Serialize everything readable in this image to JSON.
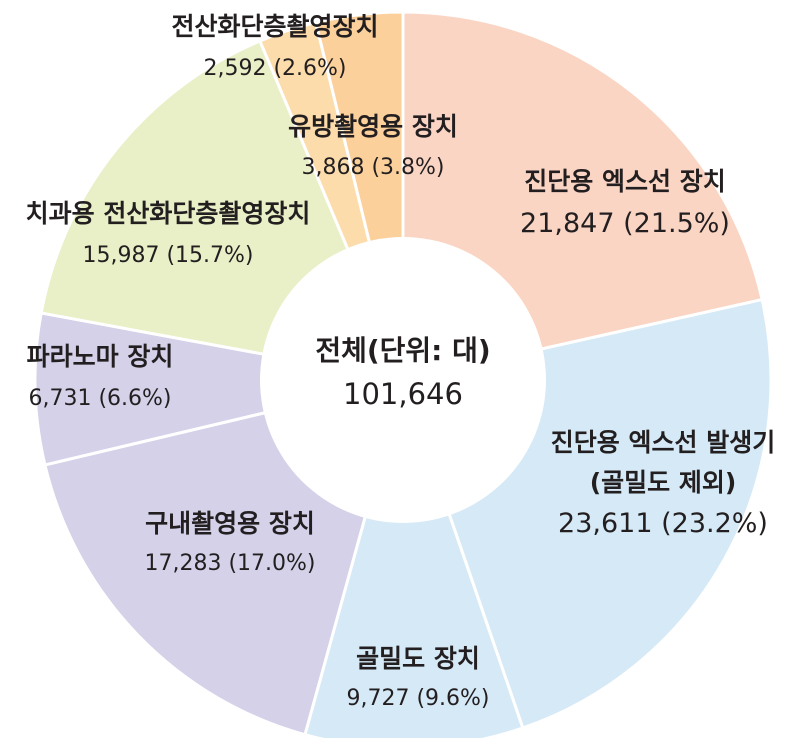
{
  "chart_data": {
    "type": "pie",
    "title": "",
    "center_label": "전체(단위: 대)",
    "center_value": "101,646",
    "slices": [
      {
        "name_lines": [
          "진단용 엑스선 장치"
        ],
        "value": 21847,
        "value_text": "21,847 (21.5%)",
        "percent": 21.5,
        "color": "#fad5c4"
      },
      {
        "name_lines": [
          "진단용 엑스선 발생기",
          "(골밀도 제외)"
        ],
        "value": 23611,
        "value_text": "23,611 (23.2%)",
        "percent": 23.2,
        "color": "#d5e9f6"
      },
      {
        "name_lines": [
          "골밀도 장치"
        ],
        "value": 9727,
        "value_text": "9,727 (9.6%)",
        "percent": 9.6,
        "color": "#d5e9f6"
      },
      {
        "name_lines": [
          "구내촬영용 장치"
        ],
        "value": 17283,
        "value_text": "17,283 (17.0%)",
        "percent": 17.0,
        "color": "#d4d1e9"
      },
      {
        "name_lines": [
          "파라노마 장치"
        ],
        "value": 6731,
        "value_text": "6,731 (6.6%)",
        "percent": 6.6,
        "color": "#d4d1e9"
      },
      {
        "name_lines": [
          "치과용 전산화단층촬영장치"
        ],
        "value": 15987,
        "value_text": "15,987 (15.7%)",
        "percent": 15.7,
        "color": "#e9efc6"
      },
      {
        "name_lines": [
          "전산화단층촬영장치"
        ],
        "value": 2592,
        "value_text": "2,592 (2.6%)",
        "percent": 2.6,
        "color": "#fcdcab"
      },
      {
        "name_lines": [
          "유방촬영용 장치"
        ],
        "value": 3868,
        "value_text": "3,868 (3.8%)",
        "percent": 3.8,
        "color": "#fbd09b"
      }
    ],
    "legend": "none"
  }
}
